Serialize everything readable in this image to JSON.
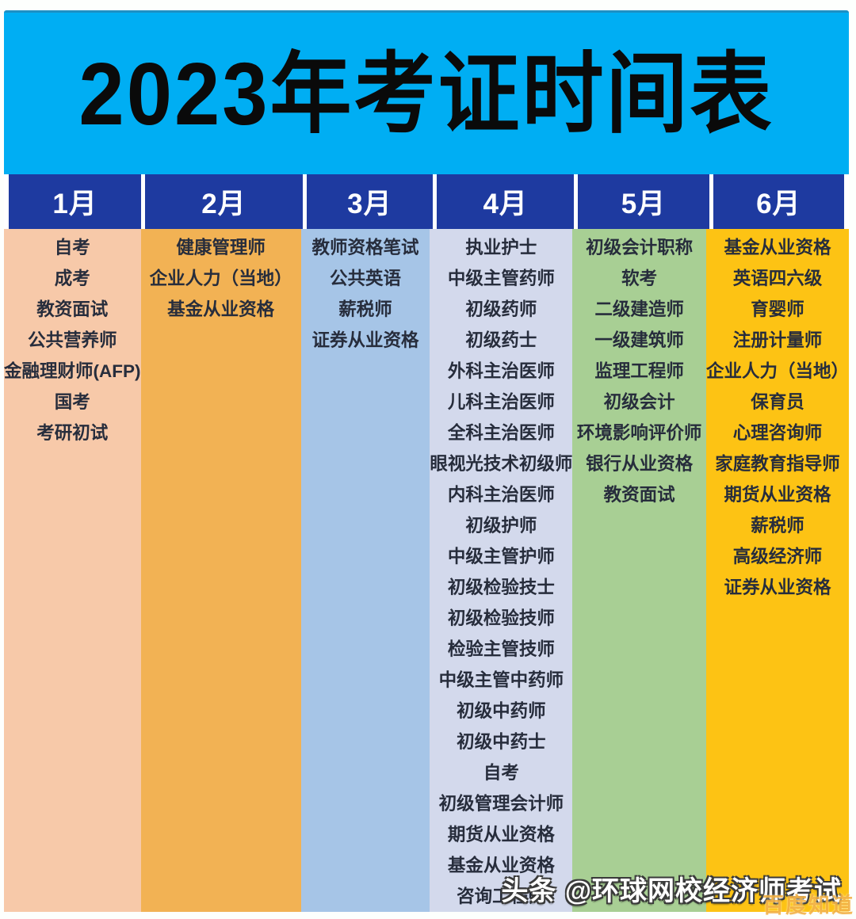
{
  "title": "2023年考证时间表",
  "colors": {
    "page_bg": "#fdfffd",
    "banner_cyan": "#00aef3",
    "header_navy": "#1e3aa0",
    "title_text": "#0a0a0a",
    "item_text": "#272d3c",
    "month_colors": [
      "#f7c9a9",
      "#f2b254",
      "#a6c5e7",
      "#d3d9ec",
      "#a8cf94",
      "#fdc314"
    ]
  },
  "chart_data": {
    "type": "table",
    "title": "2023年考证时间表",
    "layout": "6 equal-height month columns under a navy header row; items listed vertically, centered",
    "columns": [
      {
        "header": "1月",
        "color": "#f7c9a9",
        "values": [
          "自考",
          "成考",
          "教资面试",
          "公共营养师",
          "金融理财师(AFP)",
          "国考",
          "考研初试"
        ]
      },
      {
        "header": "2月",
        "color": "#f2b254",
        "values": [
          "健康管理师",
          "企业人力（当地）",
          "基金从业资格"
        ]
      },
      {
        "header": "3月",
        "color": "#a6c5e7",
        "values": [
          "教师资格笔试",
          "公共英语",
          "薪税师",
          "证券从业资格"
        ]
      },
      {
        "header": "4月",
        "color": "#d3d9ec",
        "values": [
          "执业护士",
          "中级主管药师",
          "初级药师",
          "初级药士",
          "外科主治医师",
          "儿科主治医师",
          "全科主治医师",
          "眼视光技术初级师",
          "内科主治医师",
          "初级护师",
          "中级主管护师",
          "初级检验技士",
          "初级检验技师",
          "检验主管技师",
          "中级主管中药师",
          "初级中药师",
          "初级中药士",
          "自考",
          "初级管理会计师",
          "期货从业资格",
          "基金从业资格",
          "咨询工程师"
        ]
      },
      {
        "header": "5月",
        "color": "#a8cf94",
        "values": [
          "初级会计职称",
          "软考",
          "二级建造师",
          "一级建筑师",
          "监理工程师",
          "初级会计",
          "环境影响评价师",
          "银行从业资格",
          "教资面试"
        ]
      },
      {
        "header": "6月",
        "color": "#fdc314",
        "values": [
          "基金从业资格",
          "英语四六级",
          "育婴师",
          "注册计量师",
          "企业人力（当地）",
          "保育员",
          "心理咨询师",
          "家庭教育指导师",
          "期货从业资格",
          "薪税师",
          "高级经济师",
          "证券从业资格"
        ]
      }
    ]
  },
  "watermarks": {
    "toutiao": "头条 @环球网校经济师考试",
    "baidu": "百度知道"
  }
}
